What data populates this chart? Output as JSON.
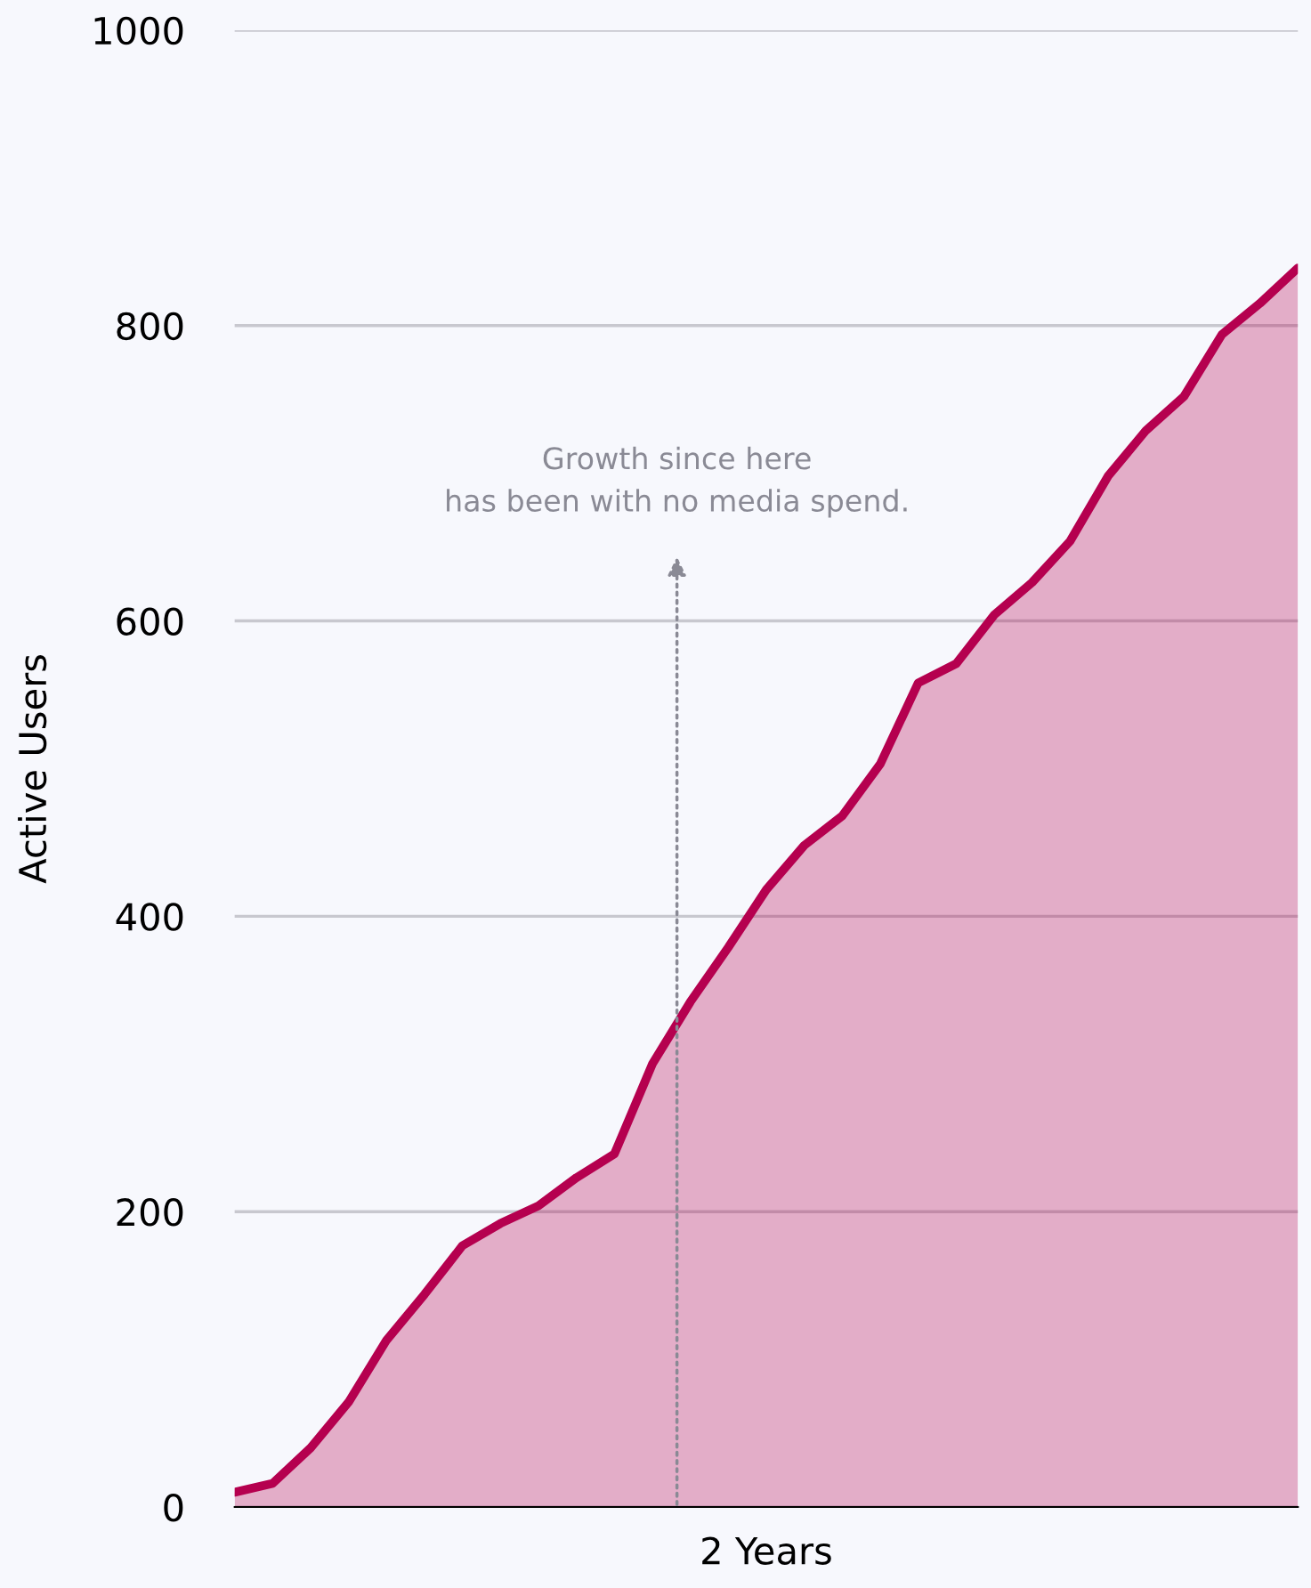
{
  "chart_data": {
    "type": "area",
    "ylabel": "Active Users",
    "xlabel": "2 Years",
    "categories": [
      null,
      null,
      null,
      null,
      null,
      null,
      null,
      null,
      null,
      null,
      null,
      null,
      null,
      null,
      null,
      null,
      null,
      null,
      null,
      null,
      null,
      null,
      null,
      null,
      null,
      null,
      null,
      null,
      null
    ],
    "ylim": [
      0,
      1000
    ],
    "yticks": [
      0,
      200,
      400,
      600,
      800,
      1000
    ],
    "series": [
      {
        "color": "#b5004f",
        "values": [
          10,
          16,
          40,
          71,
          113,
          144,
          177,
          192,
          204,
          223,
          239,
          300,
          342,
          379,
          418,
          448,
          468,
          503,
          558,
          571,
          604,
          626,
          654,
          698,
          729,
          752,
          794,
          815,
          839
        ]
      }
    ],
    "annotations": [
      "Growth since here\nhas been with no media spend."
    ],
    "grid": "y"
  }
}
